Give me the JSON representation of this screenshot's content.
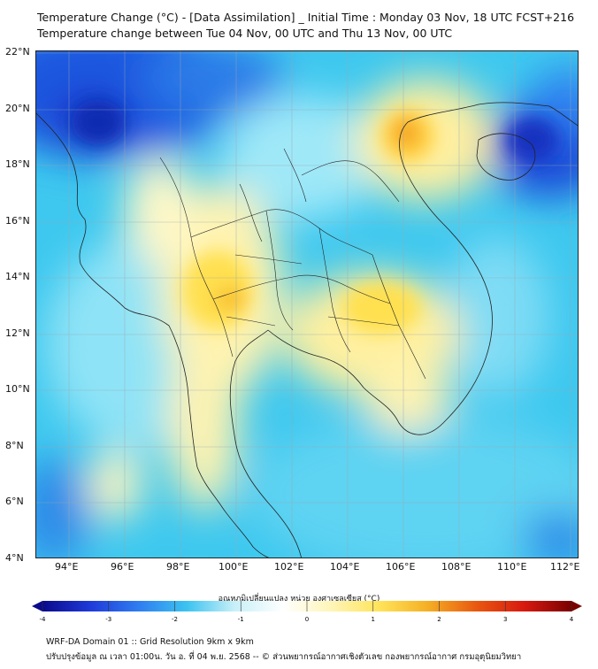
{
  "header": {
    "title_line1": "Temperature Change (°C) - [Data Assimilation] _ Initial Time : Monday 03 Nov, 18 UTC FCST+216",
    "title_line2": "Temperature change between Tue 04 Nov, 00 UTC and Thu 13 Nov, 00 UTC"
  },
  "axes": {
    "lat_labels": [
      "22°N",
      "20°N",
      "18°N",
      "16°N",
      "14°N",
      "12°N",
      "10°N",
      "8°N",
      "6°N",
      "4°N"
    ],
    "lon_labels": [
      "94°E",
      "96°E",
      "98°E",
      "100°E",
      "102°E",
      "104°E",
      "106°E",
      "108°E",
      "110°E",
      "112°E"
    ],
    "lat_range": [
      4,
      22
    ],
    "lon_range": [
      93,
      112.5
    ]
  },
  "colorbar": {
    "title": "อุณหภูมิเปลี่ยนแปลง หน่วย องศาเซลเซียส (°C)",
    "ticks": [
      "-4",
      "-3",
      "-2",
      "-1",
      "0",
      "1",
      "2",
      "3",
      "4"
    ],
    "range": [
      -4,
      4
    ],
    "colors": [
      "#0a0a8c",
      "#1f3ad8",
      "#2f7df0",
      "#3cc3f0",
      "#c8f0f8",
      "#ffffff",
      "#fff5b8",
      "#ffe45a",
      "#f5b025",
      "#e85a10",
      "#d81a10",
      "#7a0000"
    ]
  },
  "footer": {
    "line1": "WRF-DA Domain 01 :: Grid Resolution 9km x 9km",
    "line2": "ปรับปรุงข้อมูล ณ เวลา 01:00น. วัน อ. ที่ 04 พ.ย. 2568 -- © ส่วนพยากรณ์อากาศเชิงตัวเลข กองพยากรณ์อากาศ กรมอุตุนิยมวิทยา"
  }
}
